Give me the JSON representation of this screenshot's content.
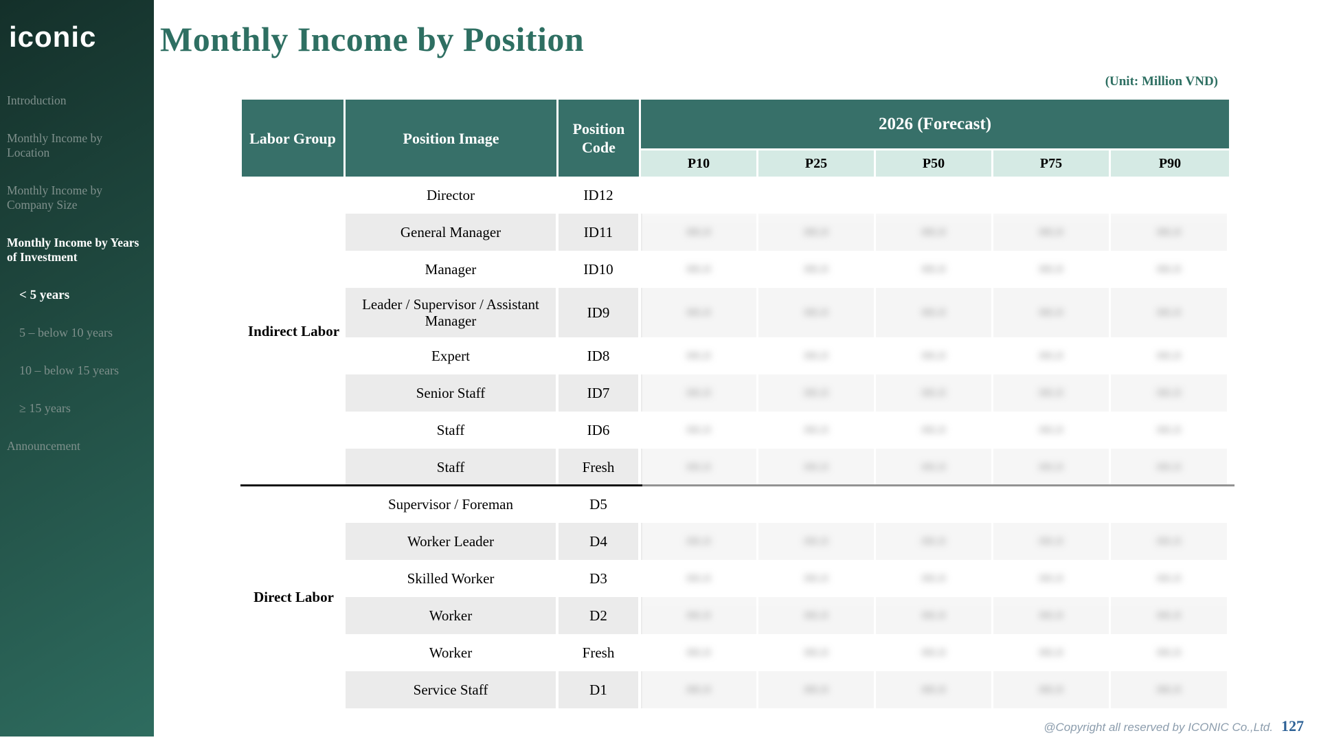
{
  "sidebar": {
    "logo": "iconic",
    "items": [
      {
        "label": "Introduction",
        "active": false,
        "indent": false
      },
      {
        "label": "Monthly Income by Location",
        "active": false,
        "indent": false
      },
      {
        "label": "Monthly Income by Company Size",
        "active": false,
        "indent": false
      },
      {
        "label": "Monthly Income by Years of Investment",
        "active": true,
        "indent": false
      },
      {
        "label": "< 5 years",
        "active": true,
        "indent": true
      },
      {
        "label": "5 – below 10 years",
        "active": false,
        "indent": true
      },
      {
        "label": "10 – below 15 years",
        "active": false,
        "indent": true
      },
      {
        "label": "≥ 15 years",
        "active": false,
        "indent": true
      },
      {
        "label": "Announcement",
        "active": false,
        "indent": false
      }
    ]
  },
  "header": {
    "title": "Monthly Income by Position",
    "unit_label": "(Unit: Million VND)"
  },
  "table": {
    "columns": {
      "labor_group": "Labor Group",
      "position_image": "Position Image",
      "position_code": "Position Code",
      "forecast": "2026 (Forecast)",
      "percentiles": [
        "P10",
        "P25",
        "P50",
        "P75",
        "P90"
      ]
    },
    "values_redacted": true,
    "redacted_text": "88.8",
    "groups": [
      {
        "label": "Indirect Labor",
        "rows": [
          {
            "position": "Director",
            "code": "ID12",
            "blank": true
          },
          {
            "position": "General Manager",
            "code": "ID11"
          },
          {
            "position": "Manager",
            "code": "ID10"
          },
          {
            "position": "Leader / Supervisor / Assistant Manager",
            "code": "ID9",
            "tall": true
          },
          {
            "position": "Expert",
            "code": "ID8"
          },
          {
            "position": "Senior Staff",
            "code": "ID7"
          },
          {
            "position": "Staff",
            "code": "ID6"
          },
          {
            "position": "Staff",
            "code": "Fresh"
          }
        ]
      },
      {
        "label": "Direct Labor",
        "rows": [
          {
            "position": "Supervisor / Foreman",
            "code": "D5",
            "blank": true
          },
          {
            "position": "Worker Leader",
            "code": "D4"
          },
          {
            "position": "Skilled Worker",
            "code": "D3"
          },
          {
            "position": "Worker",
            "code": "D2"
          },
          {
            "position": "Worker",
            "code": "Fresh"
          },
          {
            "position": "Service Staff",
            "code": "D1"
          }
        ]
      }
    ]
  },
  "footer": {
    "copyright": "@Copyright all reserved by ICONIC Co.,Ltd.",
    "page_number": "127"
  },
  "colors": {
    "header_teal": "#377069",
    "mint": "#D5EAE4",
    "row_gray": "#EBEBEB",
    "title_teal": "#2E6F62",
    "sidebar_dark": "#14302A",
    "sidebar_light": "#2E6C5F",
    "copyright_gray": "#8C9DAD",
    "page_number_blue": "#2D6196"
  }
}
